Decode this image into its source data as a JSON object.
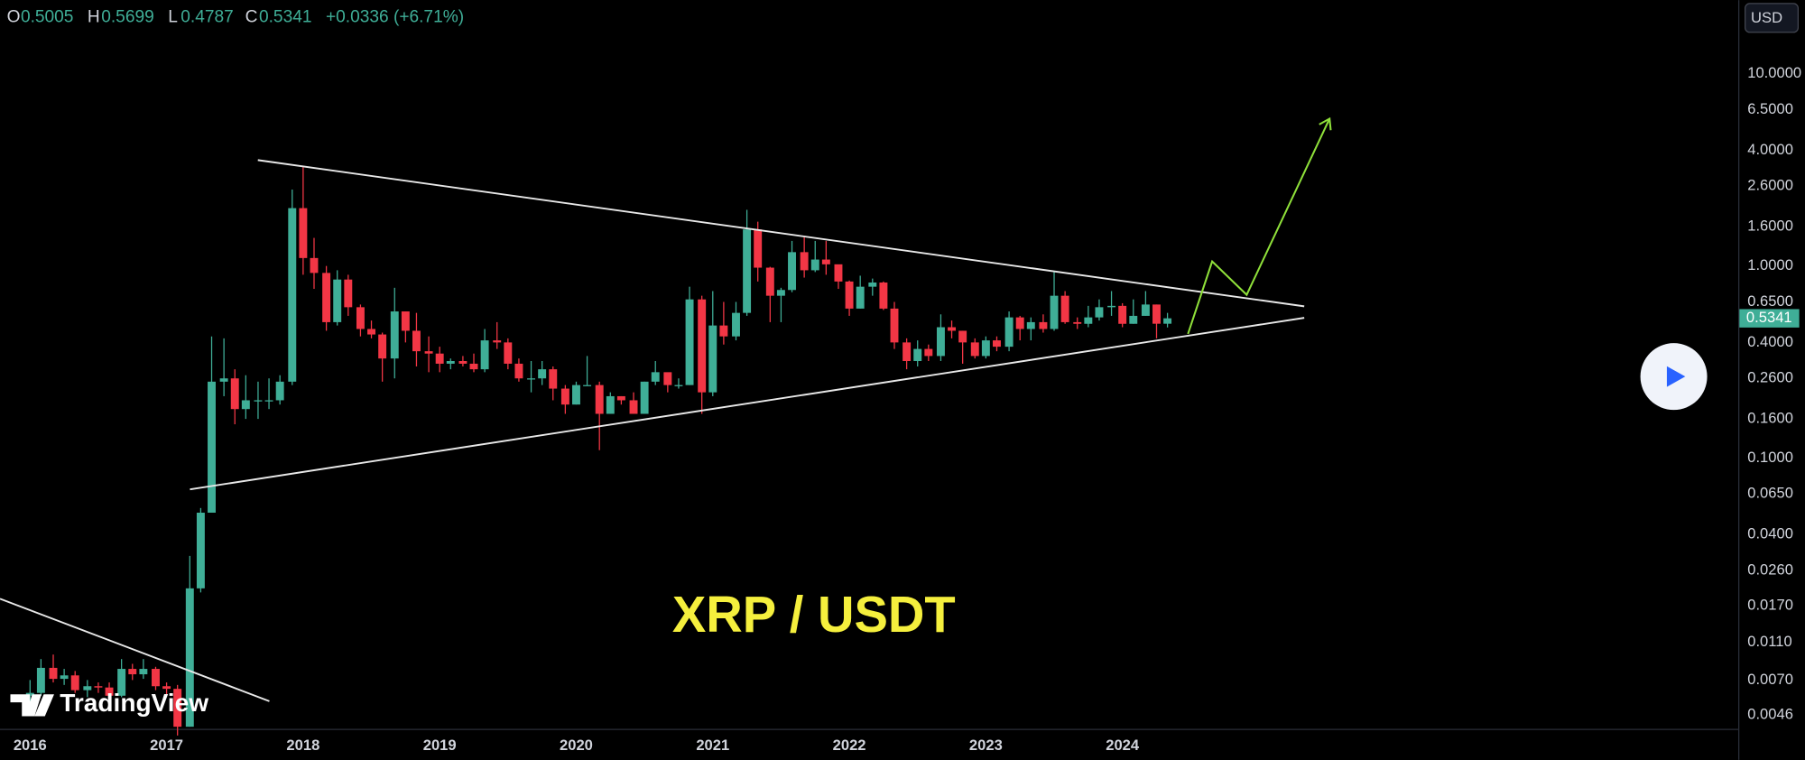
{
  "chart_data": {
    "type": "candlestick",
    "legend": [
      {
        "key": "O",
        "value": "0.5005"
      },
      {
        "key": "H",
        "value": "0.5699"
      },
      {
        "key": "L",
        "value": "0.4787"
      },
      {
        "key": "C",
        "value": "0.5341"
      }
    ],
    "change": "+0.0336 (+6.71%)",
    "currency": "USD",
    "last_price_label": "0.5341",
    "annotation": "XRP / USDT",
    "watermark": "TradingView",
    "up_color": "#3fae97",
    "down_color": "#f23645",
    "log_scale": true,
    "grid": false,
    "xlim": [
      2015.78,
      2028.51
    ],
    "xticks": [
      2016,
      2017,
      2018,
      2019,
      2020,
      2021,
      2022,
      2023,
      2024
    ],
    "ylim": [
      0.0039,
      24.2
    ],
    "yticks": [
      {
        "value": 10,
        "label": "10.0000"
      },
      {
        "value": 6.5,
        "label": "6.5000"
      },
      {
        "value": 4,
        "label": "4.0000"
      },
      {
        "value": 2.6,
        "label": "2.6000"
      },
      {
        "value": 1.6,
        "label": "1.6000"
      },
      {
        "value": 1,
        "label": "1.0000"
      },
      {
        "value": 0.65,
        "label": "0.6500"
      },
      {
        "value": 0.4,
        "label": "0.4000"
      },
      {
        "value": 0.26,
        "label": "0.2600"
      },
      {
        "value": 0.16,
        "label": "0.1600"
      },
      {
        "value": 0.1,
        "label": "0.1000"
      },
      {
        "value": 0.065,
        "label": "0.0650"
      },
      {
        "value": 0.04,
        "label": "0.0400"
      },
      {
        "value": 0.026,
        "label": "0.0260"
      },
      {
        "value": 0.017,
        "label": "0.0170"
      },
      {
        "value": 0.011,
        "label": "0.0110"
      },
      {
        "value": 0.007,
        "label": "0.0070"
      },
      {
        "value": 0.0046,
        "label": "0.0046"
      }
    ],
    "x": [
      2016,
      2016.08,
      2016.17,
      2016.25,
      2016.33,
      2016.42,
      2016.5,
      2016.58,
      2016.67,
      2016.75,
      2016.83,
      2016.92,
      2017,
      2017.08,
      2017.17,
      2017.25,
      2017.33,
      2017.42,
      2017.5,
      2017.58,
      2017.67,
      2017.75,
      2017.83,
      2017.92,
      2018,
      2018.08,
      2018.17,
      2018.25,
      2018.33,
      2018.42,
      2018.5,
      2018.58,
      2018.67,
      2018.75,
      2018.83,
      2018.92,
      2019,
      2019.08,
      2019.17,
      2019.25,
      2019.33,
      2019.42,
      2019.5,
      2019.58,
      2019.67,
      2019.75,
      2019.83,
      2019.92,
      2020,
      2020.08,
      2020.17,
      2020.25,
      2020.33,
      2020.42,
      2020.5,
      2020.58,
      2020.67,
      2020.75,
      2020.83,
      2020.92,
      2021,
      2021.08,
      2021.17,
      2021.25,
      2021.33,
      2021.42,
      2021.5,
      2021.58,
      2021.67,
      2021.75,
      2021.83,
      2021.92,
      2022,
      2022.08,
      2022.17,
      2022.25,
      2022.33,
      2022.42,
      2022.5,
      2022.58,
      2022.67,
      2022.75,
      2022.83,
      2022.92,
      2023,
      2023.08,
      2023.17,
      2023.25,
      2023.33,
      2023.42,
      2023.5,
      2023.58,
      2023.67,
      2023.75,
      2023.83,
      2023.92,
      2024,
      2024.08,
      2024.17,
      2024.25,
      2024.33
    ],
    "open": [
      0.0058,
      0.006,
      0.0081,
      0.0071,
      0.0074,
      0.0062,
      0.0065,
      0.0064,
      0.0058,
      0.008,
      0.0075,
      0.008,
      0.0065,
      0.0063,
      0.004,
      0.021,
      0.052,
      0.25,
      0.26,
      0.18,
      0.2,
      0.2,
      0.2,
      0.25,
      2.0,
      1.1,
      0.92,
      0.51,
      0.85,
      0.61,
      0.47,
      0.44,
      0.33,
      0.58,
      0.46,
      0.36,
      0.35,
      0.31,
      0.32,
      0.31,
      0.29,
      0.41,
      0.4,
      0.31,
      0.26,
      0.26,
      0.29,
      0.23,
      0.19,
      0.24,
      0.24,
      0.17,
      0.21,
      0.2,
      0.17,
      0.25,
      0.28,
      0.24,
      0.24,
      0.67,
      0.22,
      0.49,
      0.43,
      0.57,
      1.55,
      0.98,
      0.7,
      0.75,
      1.18,
      0.95,
      1.08,
      1.02,
      0.83,
      0.6,
      0.78,
      0.82,
      0.6,
      0.4,
      0.32,
      0.37,
      0.34,
      0.48,
      0.46,
      0.4,
      0.34,
      0.41,
      0.38,
      0.54,
      0.47,
      0.51,
      0.47,
      0.7,
      0.51,
      0.5,
      0.54,
      0.61,
      0.62,
      0.5,
      0.55,
      0.63,
      0.5005
    ],
    "high": [
      0.007,
      0.009,
      0.0095,
      0.008,
      0.0078,
      0.007,
      0.0068,
      0.0068,
      0.009,
      0.0085,
      0.009,
      0.0082,
      0.0068,
      0.0066,
      0.031,
      0.055,
      0.43,
      0.42,
      0.29,
      0.27,
      0.25,
      0.26,
      0.27,
      2.5,
      3.3,
      1.4,
      1.0,
      0.95,
      0.9,
      0.63,
      0.52,
      0.45,
      0.77,
      0.58,
      0.57,
      0.43,
      0.38,
      0.33,
      0.34,
      0.35,
      0.47,
      0.51,
      0.42,
      0.33,
      0.32,
      0.32,
      0.3,
      0.24,
      0.25,
      0.34,
      0.25,
      0.22,
      0.21,
      0.22,
      0.25,
      0.32,
      0.26,
      0.26,
      0.78,
      0.7,
      0.74,
      0.65,
      0.65,
      1.96,
      1.7,
      0.99,
      0.77,
      1.35,
      1.41,
      1.35,
      1.35,
      1.0,
      0.84,
      0.89,
      0.86,
      0.83,
      0.65,
      0.42,
      0.41,
      0.39,
      0.56,
      0.52,
      0.46,
      0.42,
      0.43,
      0.43,
      0.58,
      0.55,
      0.54,
      0.56,
      0.94,
      0.74,
      0.54,
      0.62,
      0.67,
      0.74,
      0.64,
      0.67,
      0.74,
      0.63,
      0.5699
    ],
    "low": [
      0.0052,
      0.0058,
      0.0068,
      0.0066,
      0.006,
      0.0057,
      0.006,
      0.0056,
      0.0057,
      0.007,
      0.0071,
      0.0062,
      0.0058,
      0.0036,
      0.004,
      0.02,
      0.052,
      0.21,
      0.15,
      0.16,
      0.16,
      0.18,
      0.19,
      0.24,
      0.9,
      0.76,
      0.46,
      0.49,
      0.55,
      0.43,
      0.42,
      0.25,
      0.26,
      0.4,
      0.3,
      0.28,
      0.28,
      0.29,
      0.3,
      0.28,
      0.28,
      0.37,
      0.29,
      0.25,
      0.22,
      0.24,
      0.2,
      0.17,
      0.19,
      0.24,
      0.11,
      0.17,
      0.19,
      0.17,
      0.17,
      0.24,
      0.22,
      0.23,
      0.24,
      0.17,
      0.21,
      0.39,
      0.41,
      0.55,
      0.83,
      0.51,
      0.51,
      0.73,
      0.87,
      0.93,
      0.9,
      0.76,
      0.55,
      0.6,
      0.7,
      0.59,
      0.37,
      0.29,
      0.3,
      0.32,
      0.32,
      0.42,
      0.31,
      0.33,
      0.33,
      0.36,
      0.36,
      0.41,
      0.41,
      0.45,
      0.46,
      0.5,
      0.47,
      0.48,
      0.52,
      0.55,
      0.48,
      0.5,
      0.55,
      0.42,
      0.4787
    ],
    "close": [
      0.006,
      0.0081,
      0.0071,
      0.0074,
      0.0062,
      0.0065,
      0.0064,
      0.0058,
      0.008,
      0.0075,
      0.008,
      0.0065,
      0.0063,
      0.004,
      0.021,
      0.052,
      0.25,
      0.26,
      0.18,
      0.2,
      0.2,
      0.2,
      0.25,
      2.0,
      1.1,
      0.92,
      0.51,
      0.85,
      0.61,
      0.47,
      0.44,
      0.33,
      0.58,
      0.46,
      0.36,
      0.35,
      0.31,
      0.32,
      0.31,
      0.29,
      0.41,
      0.4,
      0.31,
      0.26,
      0.26,
      0.29,
      0.23,
      0.19,
      0.24,
      0.24,
      0.17,
      0.21,
      0.2,
      0.17,
      0.25,
      0.28,
      0.24,
      0.24,
      0.67,
      0.22,
      0.49,
      0.43,
      0.57,
      1.55,
      0.98,
      0.7,
      0.75,
      1.18,
      0.95,
      1.08,
      1.02,
      0.83,
      0.6,
      0.78,
      0.82,
      0.6,
      0.4,
      0.32,
      0.37,
      0.34,
      0.48,
      0.46,
      0.4,
      0.34,
      0.41,
      0.38,
      0.54,
      0.47,
      0.51,
      0.47,
      0.7,
      0.51,
      0.5,
      0.54,
      0.61,
      0.62,
      0.5,
      0.55,
      0.63,
      0.5005,
      0.5341
    ]
  }
}
